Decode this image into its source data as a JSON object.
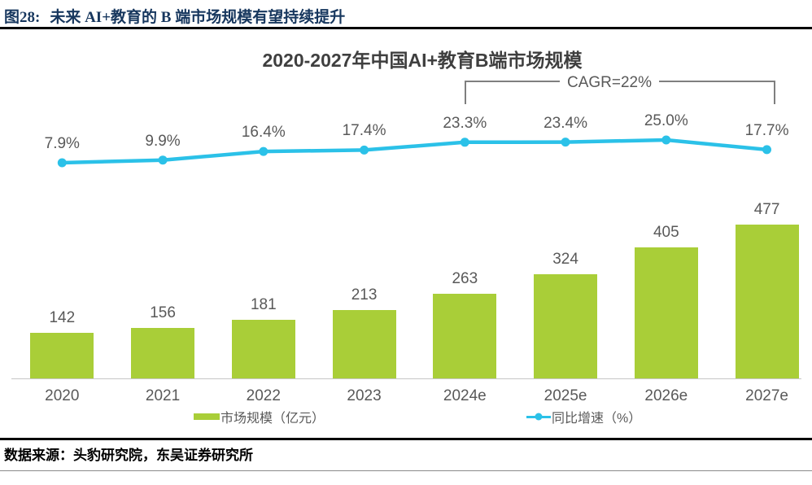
{
  "header": {
    "figure_label": "图28:",
    "title": "未来 AI+教育的 B 端市场规模有望持续提升"
  },
  "footer": {
    "source": "数据来源：头豹研究院，东吴证券研究所"
  },
  "chart_data": {
    "type": "bar+line",
    "title": "2020-2027年中国AI+教育B端市场规模",
    "categories": [
      "2020",
      "2021",
      "2022",
      "2023",
      "2024e",
      "2025e",
      "2026e",
      "2027e"
    ],
    "series": [
      {
        "name": "市场规模（亿元）",
        "type": "bar",
        "values": [
          142,
          156,
          181,
          213,
          263,
          324,
          405,
          477
        ],
        "color": "#A9CE38"
      },
      {
        "name": "同比增速（%）",
        "type": "line",
        "values": [
          7.9,
          9.9,
          16.4,
          17.4,
          23.3,
          23.4,
          25.0,
          17.7
        ],
        "labels": [
          "7.9%",
          "9.9%",
          "16.4%",
          "17.4%",
          "23.3%",
          "23.4%",
          "25.0%",
          "17.7%"
        ],
        "color": "#2BC1E8"
      }
    ],
    "annotation": {
      "text": "CAGR=22%",
      "from_category": "2024e",
      "to_category": "2027e"
    },
    "legend": [
      {
        "label": "市场规模（亿元）",
        "type": "bar",
        "color": "#A9CE38"
      },
      {
        "label": "同比增速（%）",
        "type": "line",
        "color": "#2BC1E8"
      }
    ],
    "layout": {
      "legend_position": "bottom",
      "value_axis_visible": false,
      "secondary_axis_visible": false,
      "gridlines": false,
      "bar_axis_approx_max": 600,
      "line_axis_unit": "percent"
    }
  }
}
